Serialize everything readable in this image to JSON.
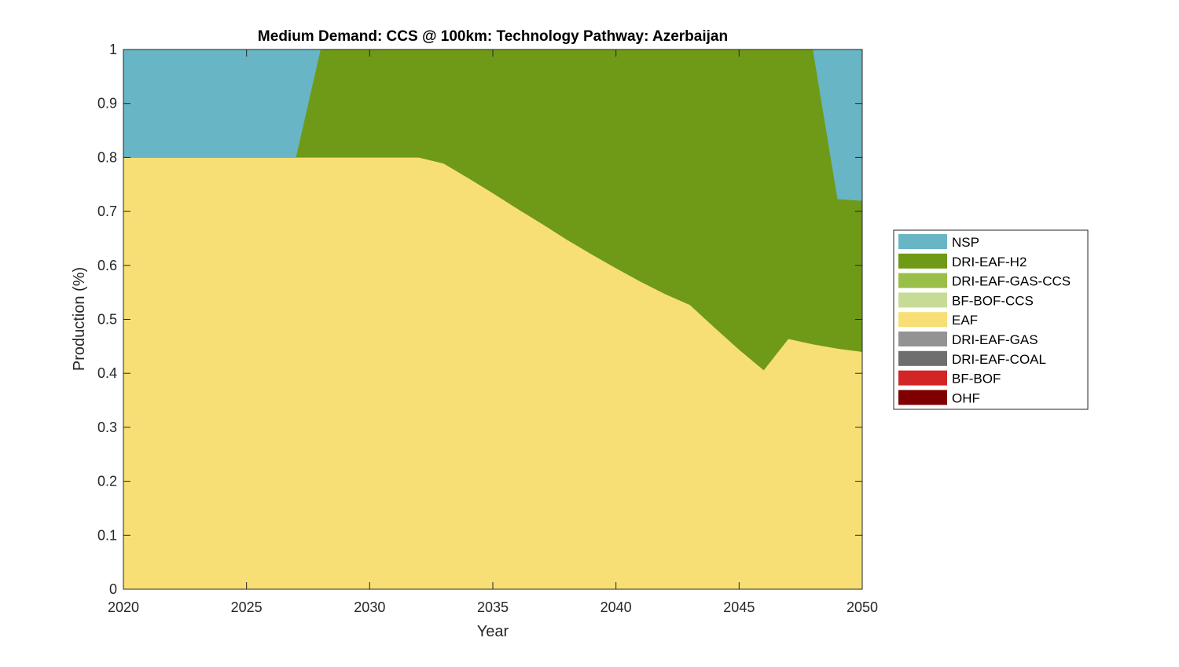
{
  "chart_data": {
    "type": "area",
    "stacked": true,
    "title": "Medium Demand: CCS @ 100km: Technology Pathway: Azerbaijan",
    "xlabel": "Year",
    "ylabel": "Production (%)",
    "xlim": [
      2020,
      2050
    ],
    "ylim": [
      0,
      1
    ],
    "xticks": [
      2020,
      2025,
      2030,
      2035,
      2040,
      2045,
      2050
    ],
    "yticks": [
      0,
      0.1,
      0.2,
      0.3,
      0.4,
      0.5,
      0.6,
      0.7,
      0.8,
      0.9,
      1
    ],
    "grid": false,
    "legend_position": "right",
    "x": [
      2020,
      2021,
      2022,
      2023,
      2024,
      2025,
      2026,
      2027,
      2028,
      2029,
      2030,
      2031,
      2032,
      2033,
      2034,
      2035,
      2036,
      2037,
      2038,
      2039,
      2040,
      2041,
      2042,
      2043,
      2044,
      2045,
      2046,
      2047,
      2048,
      2049,
      2050
    ],
    "series": [
      {
        "name": "OHF",
        "color": "#7f0000",
        "values": [
          0,
          0,
          0,
          0,
          0,
          0,
          0,
          0,
          0,
          0,
          0,
          0,
          0,
          0,
          0,
          0,
          0,
          0,
          0,
          0,
          0,
          0,
          0,
          0,
          0,
          0,
          0,
          0,
          0,
          0,
          0
        ]
      },
      {
        "name": "BF-BOF",
        "color": "#d22626",
        "values": [
          0,
          0,
          0,
          0,
          0,
          0,
          0,
          0,
          0,
          0,
          0,
          0,
          0,
          0,
          0,
          0,
          0,
          0,
          0,
          0,
          0,
          0,
          0,
          0,
          0,
          0,
          0,
          0,
          0,
          0,
          0
        ]
      },
      {
        "name": "DRI-EAF-COAL",
        "color": "#6e6e6e",
        "values": [
          0,
          0,
          0,
          0,
          0,
          0,
          0,
          0,
          0,
          0,
          0,
          0,
          0,
          0,
          0,
          0,
          0,
          0,
          0,
          0,
          0,
          0,
          0,
          0,
          0,
          0,
          0,
          0,
          0,
          0,
          0
        ]
      },
      {
        "name": "DRI-EAF-GAS",
        "color": "#939393",
        "values": [
          0,
          0,
          0,
          0,
          0,
          0,
          0,
          0,
          0,
          0,
          0,
          0,
          0,
          0,
          0,
          0,
          0,
          0,
          0,
          0,
          0,
          0,
          0,
          0,
          0,
          0,
          0,
          0,
          0,
          0,
          0
        ]
      },
      {
        "name": "EAF",
        "color": "#f7df75",
        "values": [
          0.8,
          0.8,
          0.8,
          0.8,
          0.8,
          0.8,
          0.8,
          0.8,
          0.8,
          0.8,
          0.8,
          0.8,
          0.8,
          0.789,
          0.762,
          0.734,
          0.705,
          0.677,
          0.648,
          0.621,
          0.595,
          0.57,
          0.547,
          0.527,
          0.485,
          0.444,
          0.406,
          0.464,
          0.454,
          0.446,
          0.44
        ]
      },
      {
        "name": "BF-BOF-CCS",
        "color": "#c6dc96",
        "values": [
          0,
          0,
          0,
          0,
          0,
          0,
          0,
          0,
          0,
          0,
          0,
          0,
          0,
          0,
          0,
          0,
          0,
          0,
          0,
          0,
          0,
          0,
          0,
          0,
          0,
          0,
          0,
          0,
          0,
          0,
          0
        ]
      },
      {
        "name": "DRI-EAF-GAS-CCS",
        "color": "#99bf48",
        "values": [
          0,
          0,
          0,
          0,
          0,
          0,
          0,
          0,
          0,
          0,
          0,
          0,
          0,
          0,
          0,
          0,
          0,
          0,
          0,
          0,
          0,
          0,
          0,
          0,
          0,
          0,
          0,
          0,
          0,
          0,
          0
        ]
      },
      {
        "name": "DRI-EAF-H2",
        "color": "#6f9a17",
        "values": [
          0,
          0,
          0,
          0,
          0,
          0,
          0,
          0,
          0.2,
          0.2,
          0.2,
          0.2,
          0.2,
          0.211,
          0.238,
          0.266,
          0.295,
          0.323,
          0.352,
          0.379,
          0.405,
          0.43,
          0.453,
          0.473,
          0.515,
          0.556,
          0.594,
          0.536,
          0.546,
          0.277,
          0.28
        ]
      },
      {
        "name": "NSP",
        "color": "#68b5c5",
        "values": [
          0.2,
          0.2,
          0.2,
          0.2,
          0.2,
          0.2,
          0.2,
          0.2,
          0,
          0,
          0,
          0,
          0,
          0,
          0,
          0,
          0,
          0,
          0,
          0,
          0,
          0,
          0,
          0,
          0,
          0,
          0,
          0,
          0,
          0.277,
          0.28
        ]
      }
    ],
    "legend_order": [
      "NSP",
      "DRI-EAF-H2",
      "DRI-EAF-GAS-CCS",
      "BF-BOF-CCS",
      "EAF",
      "DRI-EAF-GAS",
      "DRI-EAF-COAL",
      "BF-BOF",
      "OHF"
    ]
  }
}
